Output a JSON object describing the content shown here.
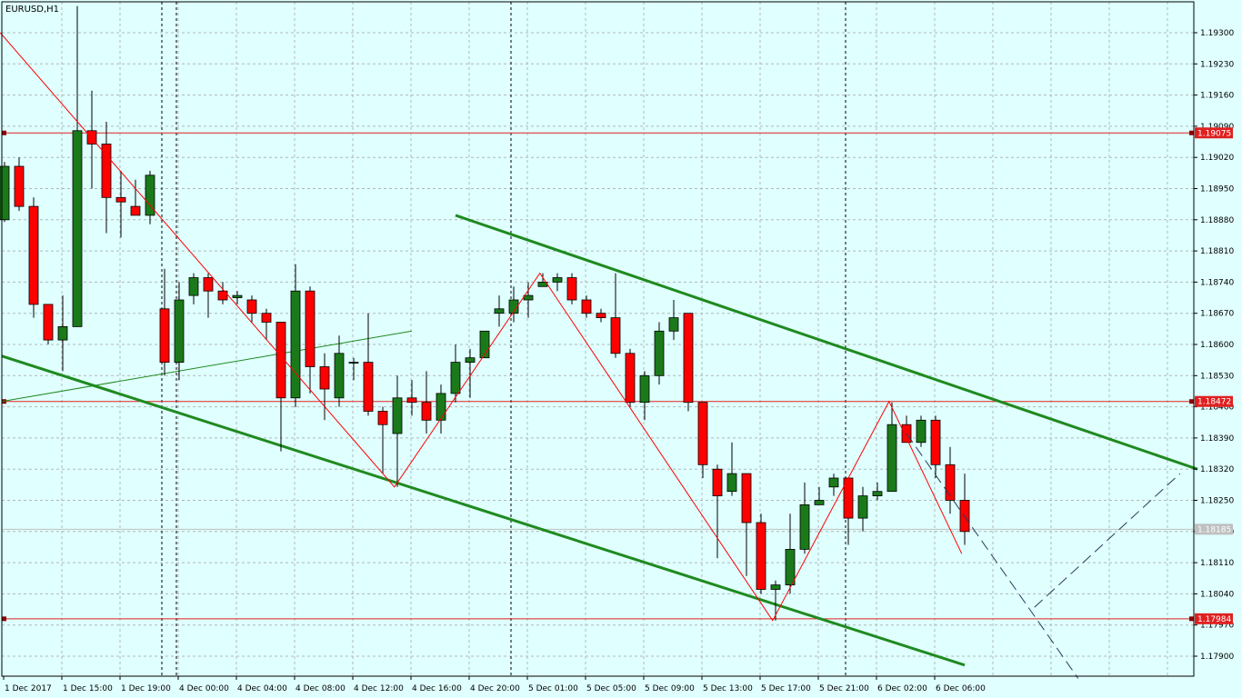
{
  "symbol_label": "EURUSD,H1",
  "colors": {
    "background": "#e0ffff",
    "grid": "#b0b8b8",
    "bull": "#1a7a1a",
    "bear": "#ff0000",
    "zigzag": "#ff0000",
    "level_line": "#e02020",
    "channel": "#1f8a1f",
    "projection": "#2b3a5a",
    "current_price_badge": "#c0c0c0"
  },
  "chart_data": {
    "type": "candlestick",
    "symbol": "EURUSD",
    "timeframe": "H1",
    "ylim": [
      1.1784,
      1.1941
    ],
    "y_ticks": [
      "1.19300",
      "1.19230",
      "1.19160",
      "1.19090",
      "1.19020",
      "1.18950",
      "1.18880",
      "1.18810",
      "1.18740",
      "1.18670",
      "1.18600",
      "1.18530",
      "1.18460",
      "1.18390",
      "1.18320",
      "1.18250",
      "1.18180",
      "1.18110",
      "1.18040",
      "1.17970",
      "1.17900"
    ],
    "x_ticks": [
      "1 Dec 2017",
      "1 Dec 15:00",
      "1 Dec 19:00",
      "4 Dec 00:00",
      "4 Dec 04:00",
      "4 Dec 08:00",
      "4 Dec 12:00",
      "4 Dec 16:00",
      "4 Dec 20:00",
      "5 Dec 01:00",
      "5 Dec 05:00",
      "5 Dec 09:00",
      "5 Dec 13:00",
      "5 Dec 17:00",
      "5 Dec 21:00",
      "6 Dec 02:00",
      "6 Dec 06:00"
    ],
    "price_levels": [
      {
        "label": "1.19075",
        "value": 1.19075
      },
      {
        "label": "1.18472",
        "value": 1.18472
      },
      {
        "label": "1.17984",
        "value": 1.17984
      }
    ],
    "current_price": {
      "label": "1.18185",
      "value": 1.18185
    },
    "candles": [
      {
        "o": 1.1888,
        "h": 1.1901,
        "l": 1.18875,
        "c": 1.19
      },
      {
        "o": 1.19,
        "h": 1.1902,
        "l": 1.189,
        "c": 1.1891
      },
      {
        "o": 1.1891,
        "h": 1.1893,
        "l": 1.1866,
        "c": 1.1869
      },
      {
        "o": 1.1869,
        "h": 1.1869,
        "l": 1.186,
        "c": 1.1861
      },
      {
        "o": 1.1861,
        "h": 1.1871,
        "l": 1.1854,
        "c": 1.1864
      },
      {
        "o": 1.1864,
        "h": 1.1936,
        "l": 1.1864,
        "c": 1.1908
      },
      {
        "o": 1.1908,
        "h": 1.1917,
        "l": 1.1895,
        "c": 1.1905
      },
      {
        "o": 1.1905,
        "h": 1.191,
        "l": 1.1885,
        "c": 1.1893
      },
      {
        "o": 1.1893,
        "h": 1.1899,
        "l": 1.1884,
        "c": 1.1892
      },
      {
        "o": 1.1891,
        "h": 1.1897,
        "l": 1.1889,
        "c": 1.1889
      },
      {
        "o": 1.1889,
        "h": 1.1899,
        "l": 1.1887,
        "c": 1.1898
      },
      {
        "o": 1.1868,
        "h": 1.1877,
        "l": 1.1853,
        "c": 1.1856
      },
      {
        "o": 1.1856,
        "h": 1.1874,
        "l": 1.1852,
        "c": 1.187
      },
      {
        "o": 1.1871,
        "h": 1.1876,
        "l": 1.1869,
        "c": 1.1875
      },
      {
        "o": 1.1875,
        "h": 1.1876,
        "l": 1.1866,
        "c": 1.1872
      },
      {
        "o": 1.1872,
        "h": 1.1874,
        "l": 1.1869,
        "c": 1.187
      },
      {
        "o": 1.18705,
        "h": 1.1872,
        "l": 1.1869,
        "c": 1.1871
      },
      {
        "o": 1.187,
        "h": 1.1871,
        "l": 1.1865,
        "c": 1.1867
      },
      {
        "o": 1.1867,
        "h": 1.1868,
        "l": 1.1861,
        "c": 1.1865
      },
      {
        "o": 1.1865,
        "h": 1.1865,
        "l": 1.1836,
        "c": 1.1848
      },
      {
        "o": 1.1848,
        "h": 1.1878,
        "l": 1.1846,
        "c": 1.1872
      },
      {
        "o": 1.1872,
        "h": 1.1873,
        "l": 1.1849,
        "c": 1.1855
      },
      {
        "o": 1.1855,
        "h": 1.1858,
        "l": 1.1843,
        "c": 1.185
      },
      {
        "o": 1.1848,
        "h": 1.1862,
        "l": 1.1846,
        "c": 1.1858
      },
      {
        "o": 1.1856,
        "h": 1.1857,
        "l": 1.1852,
        "c": 1.1856
      },
      {
        "o": 1.1856,
        "h": 1.1867,
        "l": 1.1844,
        "c": 1.1845
      },
      {
        "o": 1.1845,
        "h": 1.1846,
        "l": 1.1831,
        "c": 1.1842
      },
      {
        "o": 1.184,
        "h": 1.1853,
        "l": 1.1828,
        "c": 1.1848
      },
      {
        "o": 1.1848,
        "h": 1.1852,
        "l": 1.1844,
        "c": 1.1847
      },
      {
        "o": 1.1847,
        "h": 1.1854,
        "l": 1.184,
        "c": 1.1843
      },
      {
        "o": 1.1843,
        "h": 1.1851,
        "l": 1.184,
        "c": 1.1849
      },
      {
        "o": 1.1849,
        "h": 1.186,
        "l": 1.1847,
        "c": 1.1856
      },
      {
        "o": 1.1856,
        "h": 1.1859,
        "l": 1.1848,
        "c": 1.1857
      },
      {
        "o": 1.1857,
        "h": 1.1863,
        "l": 1.1857,
        "c": 1.1863
      },
      {
        "o": 1.1867,
        "h": 1.1871,
        "l": 1.1864,
        "c": 1.1868
      },
      {
        "o": 1.1867,
        "h": 1.1873,
        "l": 1.1865,
        "c": 1.187
      },
      {
        "o": 1.187,
        "h": 1.1874,
        "l": 1.1866,
        "c": 1.1871
      },
      {
        "o": 1.1873,
        "h": 1.1876,
        "l": 1.1873,
        "c": 1.1874
      },
      {
        "o": 1.1874,
        "h": 1.1876,
        "l": 1.1872,
        "c": 1.1875
      },
      {
        "o": 1.1875,
        "h": 1.1876,
        "l": 1.1869,
        "c": 1.187
      },
      {
        "o": 1.187,
        "h": 1.1871,
        "l": 1.1866,
        "c": 1.1867
      },
      {
        "o": 1.1867,
        "h": 1.1868,
        "l": 1.1865,
        "c": 1.1866
      },
      {
        "o": 1.1866,
        "h": 1.1876,
        "l": 1.1857,
        "c": 1.1858
      },
      {
        "o": 1.1858,
        "h": 1.1859,
        "l": 1.1846,
        "c": 1.1847
      },
      {
        "o": 1.1847,
        "h": 1.1854,
        "l": 1.1843,
        "c": 1.1853
      },
      {
        "o": 1.1853,
        "h": 1.1865,
        "l": 1.1851,
        "c": 1.1863
      },
      {
        "o": 1.1863,
        "h": 1.187,
        "l": 1.1861,
        "c": 1.1866
      },
      {
        "o": 1.1867,
        "h": 1.1867,
        "l": 1.1845,
        "c": 1.1847
      },
      {
        "o": 1.1847,
        "h": 1.1847,
        "l": 1.183,
        "c": 1.1833
      },
      {
        "o": 1.1832,
        "h": 1.1833,
        "l": 1.1812,
        "c": 1.1826
      },
      {
        "o": 1.1827,
        "h": 1.1838,
        "l": 1.1826,
        "c": 1.1831
      },
      {
        "o": 1.1831,
        "h": 1.1831,
        "l": 1.1808,
        "c": 1.182
      },
      {
        "o": 1.182,
        "h": 1.1822,
        "l": 1.1804,
        "c": 1.1805
      },
      {
        "o": 1.1805,
        "h": 1.1807,
        "l": 1.1798,
        "c": 1.1806
      },
      {
        "o": 1.1806,
        "h": 1.1822,
        "l": 1.1804,
        "c": 1.1814
      },
      {
        "o": 1.1814,
        "h": 1.1829,
        "l": 1.1813,
        "c": 1.1824
      },
      {
        "o": 1.1824,
        "h": 1.1828,
        "l": 1.1824,
        "c": 1.1825
      },
      {
        "o": 1.1828,
        "h": 1.1831,
        "l": 1.1826,
        "c": 1.183
      },
      {
        "o": 1.183,
        "h": 1.183,
        "l": 1.1815,
        "c": 1.1821
      },
      {
        "o": 1.1821,
        "h": 1.1828,
        "l": 1.1818,
        "c": 1.1826
      },
      {
        "o": 1.1826,
        "h": 1.1829,
        "l": 1.1825,
        "c": 1.1827
      },
      {
        "o": 1.1827,
        "h": 1.1847,
        "l": 1.1827,
        "c": 1.1842
      },
      {
        "o": 1.1842,
        "h": 1.1844,
        "l": 1.1838,
        "c": 1.1838
      },
      {
        "o": 1.1838,
        "h": 1.1844,
        "l": 1.1837,
        "c": 1.1843
      },
      {
        "o": 1.1843,
        "h": 1.1844,
        "l": 1.183,
        "c": 1.1833
      },
      {
        "o": 1.1833,
        "h": 1.1837,
        "l": 1.1822,
        "c": 1.1825
      },
      {
        "o": 1.1825,
        "h": 1.1831,
        "l": 1.1815,
        "c": 1.1818
      }
    ]
  }
}
